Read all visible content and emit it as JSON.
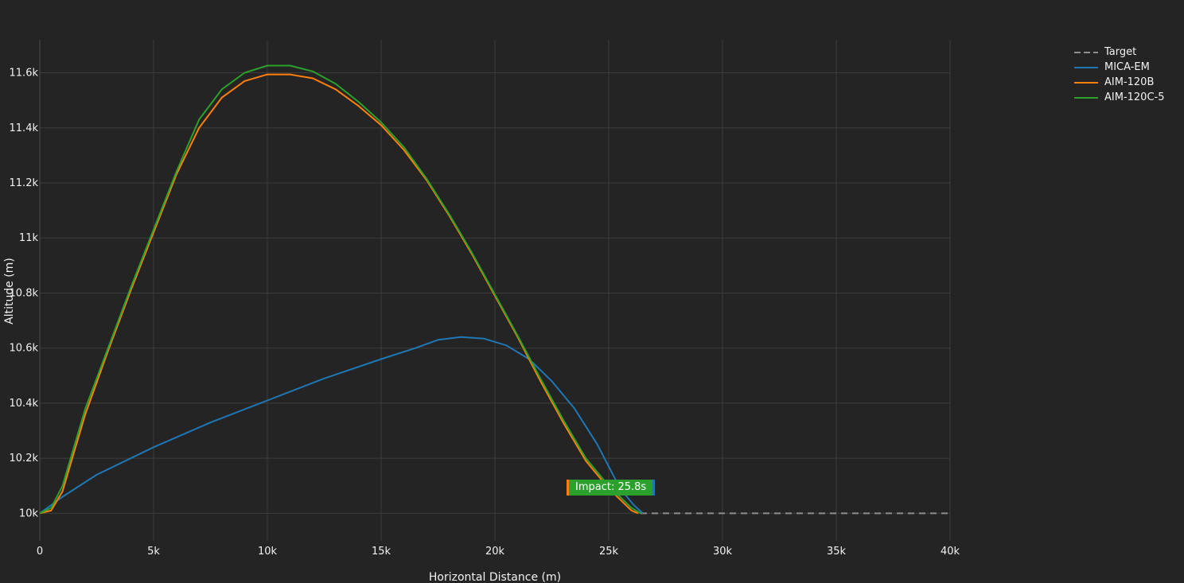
{
  "chart_data": {
    "type": "line",
    "xlabel": "Horizontal Distance (m)",
    "ylabel": "Altitude (m)",
    "xlim": [
      0,
      40000
    ],
    "ylim": [
      9900,
      11720
    ],
    "x_ticks": [
      0,
      5000,
      10000,
      15000,
      20000,
      25000,
      30000,
      35000,
      40000
    ],
    "x_tick_labels": [
      "0",
      "5k",
      "10k",
      "15k",
      "20k",
      "25k",
      "30k",
      "35k",
      "40k"
    ],
    "y_ticks": [
      10000,
      10200,
      10400,
      10600,
      10800,
      11000,
      11200,
      11400,
      11600
    ],
    "y_tick_labels": [
      "10k",
      "10.2k",
      "10.4k",
      "10.6k",
      "10.8k",
      "11k",
      "11.2k",
      "11.4k",
      "11.6k"
    ],
    "grid": true,
    "legend_position": "top-right",
    "series": [
      {
        "name": "Target",
        "color": "#8e8e8e",
        "dash": true,
        "x": [
          26400,
          40000
        ],
        "y": [
          10000,
          10000
        ]
      },
      {
        "name": "MICA-EM",
        "color": "#1f77b4",
        "x": [
          0,
          500,
          1000,
          2500,
          5000,
          7500,
          10000,
          12500,
          15000,
          16500,
          17500,
          18500,
          19500,
          20500,
          21500,
          22500,
          23500,
          24500,
          25500,
          26100,
          26500
        ],
        "y": [
          10000,
          10030,
          10060,
          10140,
          10240,
          10330,
          10410,
          10490,
          10560,
          10600,
          10630,
          10640,
          10635,
          10610,
          10560,
          10480,
          10380,
          10250,
          10090,
          10030,
          10000
        ]
      },
      {
        "name": "AIM-120B",
        "color": "#ff7f0e",
        "x": [
          0,
          500,
          1000,
          1500,
          2000,
          3000,
          4000,
          5000,
          6000,
          7000,
          8000,
          9000,
          10000,
          11000,
          12000,
          13000,
          14000,
          15000,
          16000,
          17000,
          18000,
          19000,
          20000,
          21000,
          22000,
          23000,
          24000,
          25000,
          26000,
          26300
        ],
        "y": [
          10000,
          10010,
          10080,
          10220,
          10360,
          10590,
          10810,
          11020,
          11230,
          11400,
          11510,
          11570,
          11594,
          11594,
          11580,
          11540,
          11480,
          11410,
          11320,
          11210,
          11080,
          10940,
          10790,
          10640,
          10480,
          10330,
          10190,
          10090,
          10010,
          10000
        ]
      },
      {
        "name": "AIM-120C-5",
        "color": "#2ca02c",
        "x": [
          0,
          500,
          1000,
          1500,
          2000,
          3000,
          4000,
          5000,
          6000,
          7000,
          8000,
          9000,
          10000,
          11000,
          12000,
          13000,
          14000,
          15000,
          16000,
          17000,
          18000,
          19000,
          20000,
          21000,
          22000,
          23000,
          24000,
          25000,
          26000,
          26400
        ],
        "y": [
          10000,
          10020,
          10100,
          10240,
          10380,
          10600,
          10820,
          11030,
          11240,
          11430,
          11540,
          11600,
          11626,
          11626,
          11605,
          11560,
          11495,
          11420,
          11330,
          11215,
          11085,
          10945,
          10795,
          10645,
          10490,
          10340,
          10200,
          10100,
          10020,
          10000
        ]
      }
    ],
    "annotations": [
      {
        "text": "Impact: 25.8s",
        "x": 25000,
        "y": 10110
      }
    ]
  }
}
